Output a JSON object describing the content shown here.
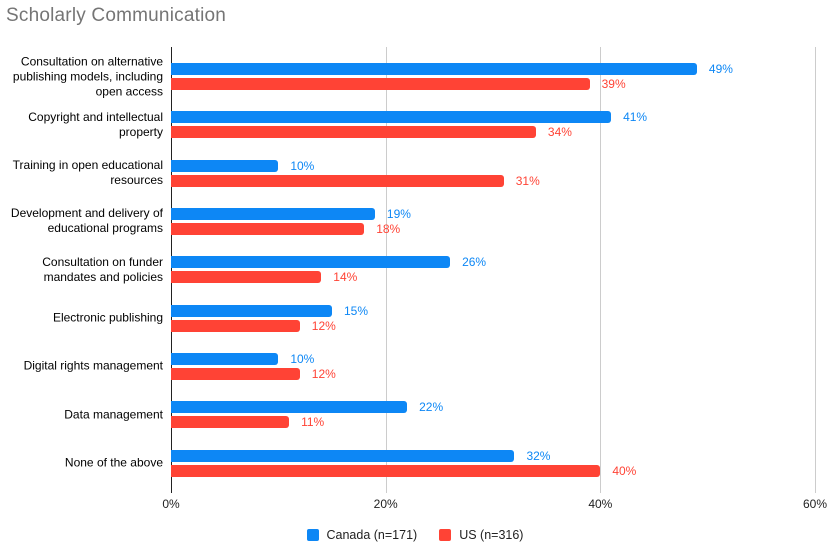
{
  "chart_data": {
    "type": "bar",
    "orientation": "horizontal",
    "title": "Scholarly Communication",
    "categories": [
      "Consultation on alternative publishing models, including open access",
      "Copyright and intellectual property",
      "Training in open educational resources",
      "Development and delivery of educational programs",
      "Consultation on funder mandates and policies",
      "Electronic publishing",
      "Digital rights management",
      "Data management",
      "None of the above"
    ],
    "series": [
      {
        "key": "canada",
        "name": "Canada (n=171)",
        "color": "#0d87f5",
        "values": [
          49,
          41,
          10,
          19,
          26,
          15,
          10,
          22,
          32
        ]
      },
      {
        "key": "us",
        "name": "US (n=316)",
        "color": "#ff4335",
        "values": [
          39,
          34,
          31,
          18,
          14,
          12,
          12,
          11,
          40
        ]
      }
    ],
    "value_suffix": "%",
    "xlim": [
      0,
      60
    ],
    "x_ticks": [
      {
        "value": 0,
        "label": "0%"
      },
      {
        "value": 20,
        "label": "20%"
      },
      {
        "value": 40,
        "label": "40%"
      },
      {
        "value": 60,
        "label": "60%"
      }
    ],
    "grid": true,
    "legend_position": "bottom",
    "colors": {
      "title": "#757575",
      "axis_line": "#222222",
      "gridline": "#cccccc",
      "category_label": "#000000",
      "tick_label": "#222222",
      "legend_label": "#222222"
    }
  }
}
